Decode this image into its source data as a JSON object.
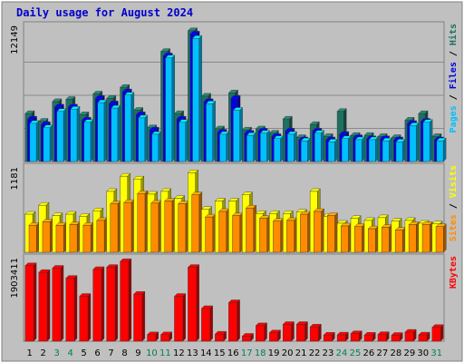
{
  "title": "Daily usage for August 2024",
  "colors": {
    "background": "#c0c0c0",
    "frame": "#ffffff",
    "title": "#0000cc",
    "hits": "#1e7060",
    "files": "#0000e0",
    "pages": "#00c0ff",
    "visits": "#ffff00",
    "sites": "#ff8c00",
    "kbytes": "#ff0000",
    "weekend_label": "#00805a",
    "weekday_label": "#000000"
  },
  "chart_data": [
    {
      "type": "bar",
      "panel": "hits-files-pages",
      "ymax_label": "12149",
      "legend": [
        "Pages",
        "Files",
        "Hits"
      ],
      "ylim": [
        0,
        12149
      ],
      "categories": [
        "1",
        "2",
        "3",
        "4",
        "5",
        "6",
        "7",
        "8",
        "9",
        "10",
        "11",
        "12",
        "13",
        "14",
        "15",
        "16",
        "17",
        "18",
        "19",
        "20",
        "21",
        "22",
        "23",
        "24",
        "25",
        "26",
        "27",
        "28",
        "29",
        "30",
        "31"
      ],
      "weekend": [
        false,
        false,
        true,
        true,
        false,
        false,
        false,
        false,
        false,
        true,
        true,
        false,
        false,
        false,
        false,
        false,
        true,
        true,
        false,
        false,
        false,
        false,
        false,
        true,
        true,
        false,
        false,
        false,
        false,
        false,
        true
      ],
      "series": [
        {
          "name": "Hits",
          "values": [
            4400,
            3700,
            5500,
            5700,
            4300,
            6200,
            5800,
            6800,
            4700,
            3100,
            10100,
            4400,
            12000,
            6000,
            3000,
            6300,
            2900,
            3000,
            2600,
            3900,
            2200,
            3400,
            2300,
            4600,
            2400,
            2400,
            2300,
            2200,
            3800,
            4400,
            2300
          ]
        },
        {
          "name": "Files",
          "values": [
            3900,
            3400,
            5000,
            5000,
            3800,
            5800,
            5300,
            6400,
            4300,
            2900,
            9700,
            3900,
            11700,
            5500,
            2700,
            5800,
            2600,
            2800,
            2300,
            2800,
            2000,
            2800,
            2000,
            2500,
            2200,
            2100,
            2100,
            2000,
            3500,
            3700,
            2000
          ]
        },
        {
          "name": "Pages",
          "values": [
            3500,
            3100,
            4600,
            4800,
            3600,
            5400,
            4900,
            6100,
            4000,
            2500,
            9500,
            3600,
            11300,
            5300,
            2500,
            4700,
            2400,
            2600,
            2100,
            2500,
            1900,
            2600,
            1800,
            2100,
            2000,
            2000,
            1900,
            1800,
            3300,
            3600,
            1900
          ]
        }
      ]
    },
    {
      "type": "bar",
      "panel": "visits-sites",
      "ymax_label": "1181",
      "legend": [
        "Sites",
        "Visits"
      ],
      "ylim": [
        0,
        1181
      ],
      "categories": [
        "1",
        "2",
        "3",
        "4",
        "5",
        "6",
        "7",
        "8",
        "9",
        "10",
        "11",
        "12",
        "13",
        "14",
        "15",
        "16",
        "17",
        "18",
        "19",
        "20",
        "21",
        "22",
        "23",
        "24",
        "25",
        "26",
        "27",
        "28",
        "29",
        "30",
        "31"
      ],
      "series": [
        {
          "name": "Visits",
          "values": [
            550,
            680,
            530,
            550,
            520,
            600,
            880,
            1100,
            1060,
            840,
            880,
            780,
            1150,
            620,
            740,
            740,
            830,
            560,
            560,
            560,
            580,
            880,
            520,
            420,
            490,
            460,
            500,
            450,
            460,
            420,
            410
          ]
        },
        {
          "name": "Sites",
          "values": [
            390,
            440,
            390,
            400,
            390,
            460,
            700,
            720,
            850,
            710,
            740,
            700,
            830,
            510,
            590,
            530,
            640,
            490,
            450,
            460,
            550,
            590,
            530,
            380,
            370,
            340,
            360,
            320,
            400,
            400,
            370
          ]
        }
      ]
    },
    {
      "type": "bar",
      "panel": "kbytes",
      "ymax_label": "1903411",
      "legend": [
        "KBytes"
      ],
      "ylim": [
        0,
        1903411
      ],
      "categories": [
        "1",
        "2",
        "3",
        "4",
        "5",
        "6",
        "7",
        "8",
        "9",
        "10",
        "11",
        "12",
        "13",
        "14",
        "15",
        "16",
        "17",
        "18",
        "19",
        "20",
        "21",
        "22",
        "23",
        "24",
        "25",
        "26",
        "27",
        "28",
        "29",
        "30",
        "31"
      ],
      "series": [
        {
          "name": "KBytes",
          "values": [
            1800000,
            1640000,
            1740000,
            1500000,
            1070000,
            1710000,
            1760000,
            1900000,
            1120000,
            155000,
            155000,
            1070000,
            1760000,
            780000,
            170000,
            920000,
            120000,
            370000,
            200000,
            400000,
            400000,
            340000,
            145000,
            150000,
            180000,
            145000,
            160000,
            140000,
            215000,
            150000,
            330000
          ]
        }
      ]
    }
  ]
}
